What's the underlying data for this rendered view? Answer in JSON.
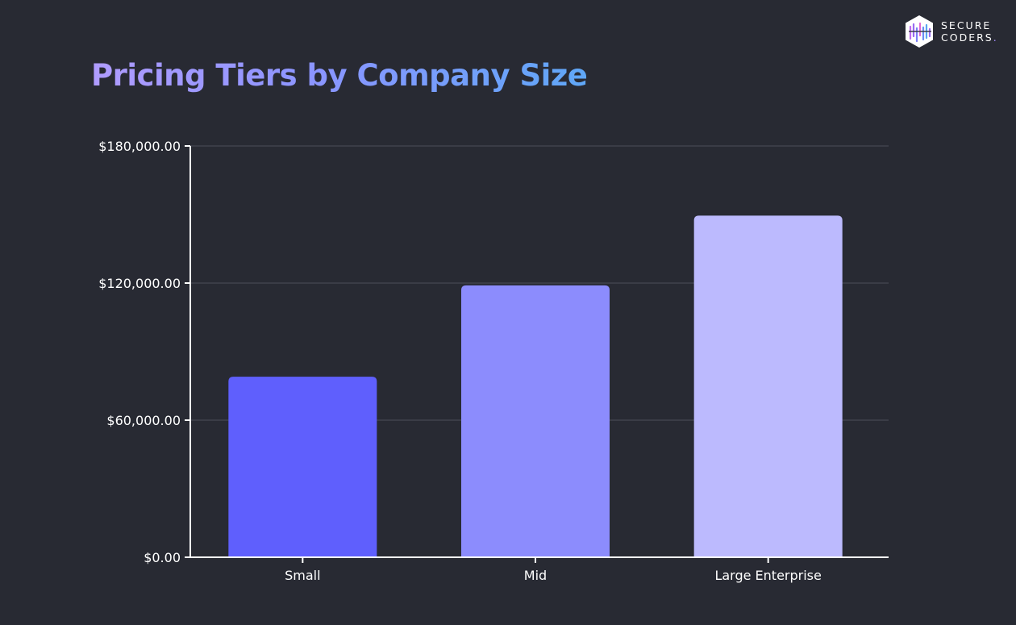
{
  "chart_data": {
    "type": "bar",
    "title": "Pricing Tiers by Company Size",
    "categories": [
      "Small",
      "Mid",
      "Large Enterprise"
    ],
    "values": [
      79000,
      119000,
      149500
    ],
    "bar_colors": [
      "#5f5ffd",
      "#8c8cfd",
      "#bcbafe"
    ],
    "ylim": [
      0,
      180000
    ],
    "yticks": [
      0,
      60000,
      120000,
      180000
    ],
    "ytick_labels": [
      "$0.00",
      "$60,000.00",
      "$120,000.00",
      "$180,000.00"
    ],
    "xlabel": "",
    "ylabel": "",
    "grid": true,
    "legend": "none"
  },
  "logo": {
    "line1": "SECURE",
    "line2": "CODERS",
    "dot": "."
  },
  "colors": {
    "background": "#282a33",
    "axis": "#ffffff",
    "gridline": "#4d4f58"
  }
}
